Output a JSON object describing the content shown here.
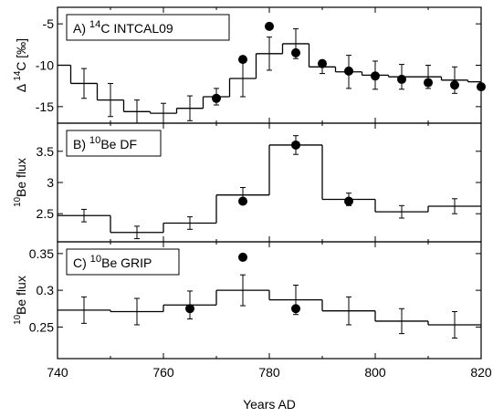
{
  "chart_data": [
    {
      "type": "step",
      "label": {
        "prefix": "A) ",
        "sup": "14",
        "text": "C INTCAL09"
      },
      "ylabel": {
        "prefix": "Δ ",
        "sup": "14",
        "text": "C [‰]"
      },
      "xlim": [
        740,
        820
      ],
      "xticks": [
        740,
        760,
        780,
        800,
        820
      ],
      "xminor": [
        750,
        770,
        790,
        810
      ],
      "ylim": [
        -17,
        -3
      ],
      "yticks": [
        -5,
        -10,
        -15
      ],
      "color": "#000000",
      "step": {
        "bins": [
          740,
          742.5,
          747.5,
          752.5,
          757.5,
          762.5,
          767.5,
          772.5,
          777.5,
          782.5,
          787.5,
          792.5,
          797.5,
          802.5,
          807.5,
          812.5,
          817.5,
          820
        ],
        "values": [
          -10,
          -12.2,
          -14.2,
          -15.6,
          -15.8,
          -15.2,
          -13.8,
          -11.6,
          -8.6,
          -7.4,
          -10.2,
          -10.8,
          -11.2,
          -11.4,
          -11.4,
          -11.8,
          -12
        ]
      },
      "errorbars": {
        "x": [
          745,
          750,
          755,
          760,
          765,
          770,
          775,
          780,
          785,
          790,
          795,
          800,
          805,
          810,
          815
        ],
        "values": [
          -12.2,
          -14.2,
          -15.6,
          -15.8,
          -15.2,
          -13.8,
          -11.6,
          -8.6,
          -7.4,
          -10.2,
          -10.8,
          -11.2,
          -11.4,
          -11.4,
          -11.8
        ],
        "errors": [
          1.8,
          2,
          1.4,
          1.2,
          1.5,
          1,
          2.2,
          2,
          1.8,
          0.8,
          2,
          1.7,
          1.5,
          1.4,
          1.6
        ]
      },
      "points": {
        "x": [
          770,
          775,
          780,
          785,
          790,
          795,
          800,
          805,
          810,
          815,
          820
        ],
        "values": [
          -14,
          -9.3,
          -5.3,
          -8.5,
          -9.8,
          -10.7,
          -11.3,
          -11.7,
          -12.1,
          -12.4,
          -12.6
        ]
      }
    },
    {
      "type": "step",
      "label": {
        "prefix": "B) ",
        "sup": "10",
        "text": "Be DF"
      },
      "ylabel": {
        "prefix": "",
        "sup": "10",
        "text": "Be flux"
      },
      "xlim": [
        740,
        820
      ],
      "xticks": [
        740,
        760,
        780,
        800,
        820
      ],
      "xminor": [
        750,
        770,
        790,
        810
      ],
      "ylim": [
        2.05,
        3.95
      ],
      "yticks": [
        3.5,
        3.0,
        2.5
      ],
      "color": "#000000",
      "step": {
        "bins": [
          740,
          750,
          760,
          770,
          780,
          790,
          800,
          810,
          820
        ],
        "values": [
          2.47,
          2.2,
          2.35,
          2.8,
          3.6,
          2.73,
          2.53,
          2.62
        ]
      },
      "errorbars": {
        "x": [
          745,
          755,
          765,
          775,
          785,
          795,
          805,
          815
        ],
        "values": [
          2.47,
          2.2,
          2.35,
          2.8,
          3.6,
          2.73,
          2.53,
          2.62
        ],
        "errors": [
          0.1,
          0.1,
          0.1,
          0.12,
          0.15,
          0.1,
          0.1,
          0.12
        ]
      },
      "points": {
        "x": [
          775,
          785,
          795
        ],
        "values": [
          2.7,
          3.6,
          2.7
        ]
      }
    },
    {
      "type": "step",
      "label": {
        "prefix": "C) ",
        "sup": "10",
        "text": "Be GRIP"
      },
      "ylabel": {
        "prefix": "",
        "sup": "10",
        "text": "Be flux"
      },
      "xlim": [
        740,
        820
      ],
      "xticks": [
        740,
        760,
        780,
        800,
        820
      ],
      "xminor": [
        750,
        770,
        790,
        810
      ],
      "xlabel": "Years AD",
      "ylim": [
        0.207,
        0.366
      ],
      "yticks": [
        0.35,
        0.3,
        0.25
      ],
      "color": "#000000",
      "step": {
        "bins": [
          740,
          750,
          760,
          770,
          780,
          790,
          800,
          810,
          820
        ],
        "values": [
          0.273,
          0.271,
          0.28,
          0.3,
          0.287,
          0.272,
          0.258,
          0.253
        ]
      },
      "errorbars": {
        "x": [
          745,
          755,
          765,
          775,
          785,
          795,
          805,
          815
        ],
        "values": [
          0.273,
          0.271,
          0.28,
          0.3,
          0.287,
          0.272,
          0.258,
          0.253
        ],
        "errors": [
          0.018,
          0.018,
          0.019,
          0.021,
          0.02,
          0.019,
          0.017,
          0.018
        ]
      },
      "points": {
        "x": [
          765,
          775,
          785
        ],
        "values": [
          0.275,
          0.345,
          0.275
        ]
      }
    }
  ]
}
